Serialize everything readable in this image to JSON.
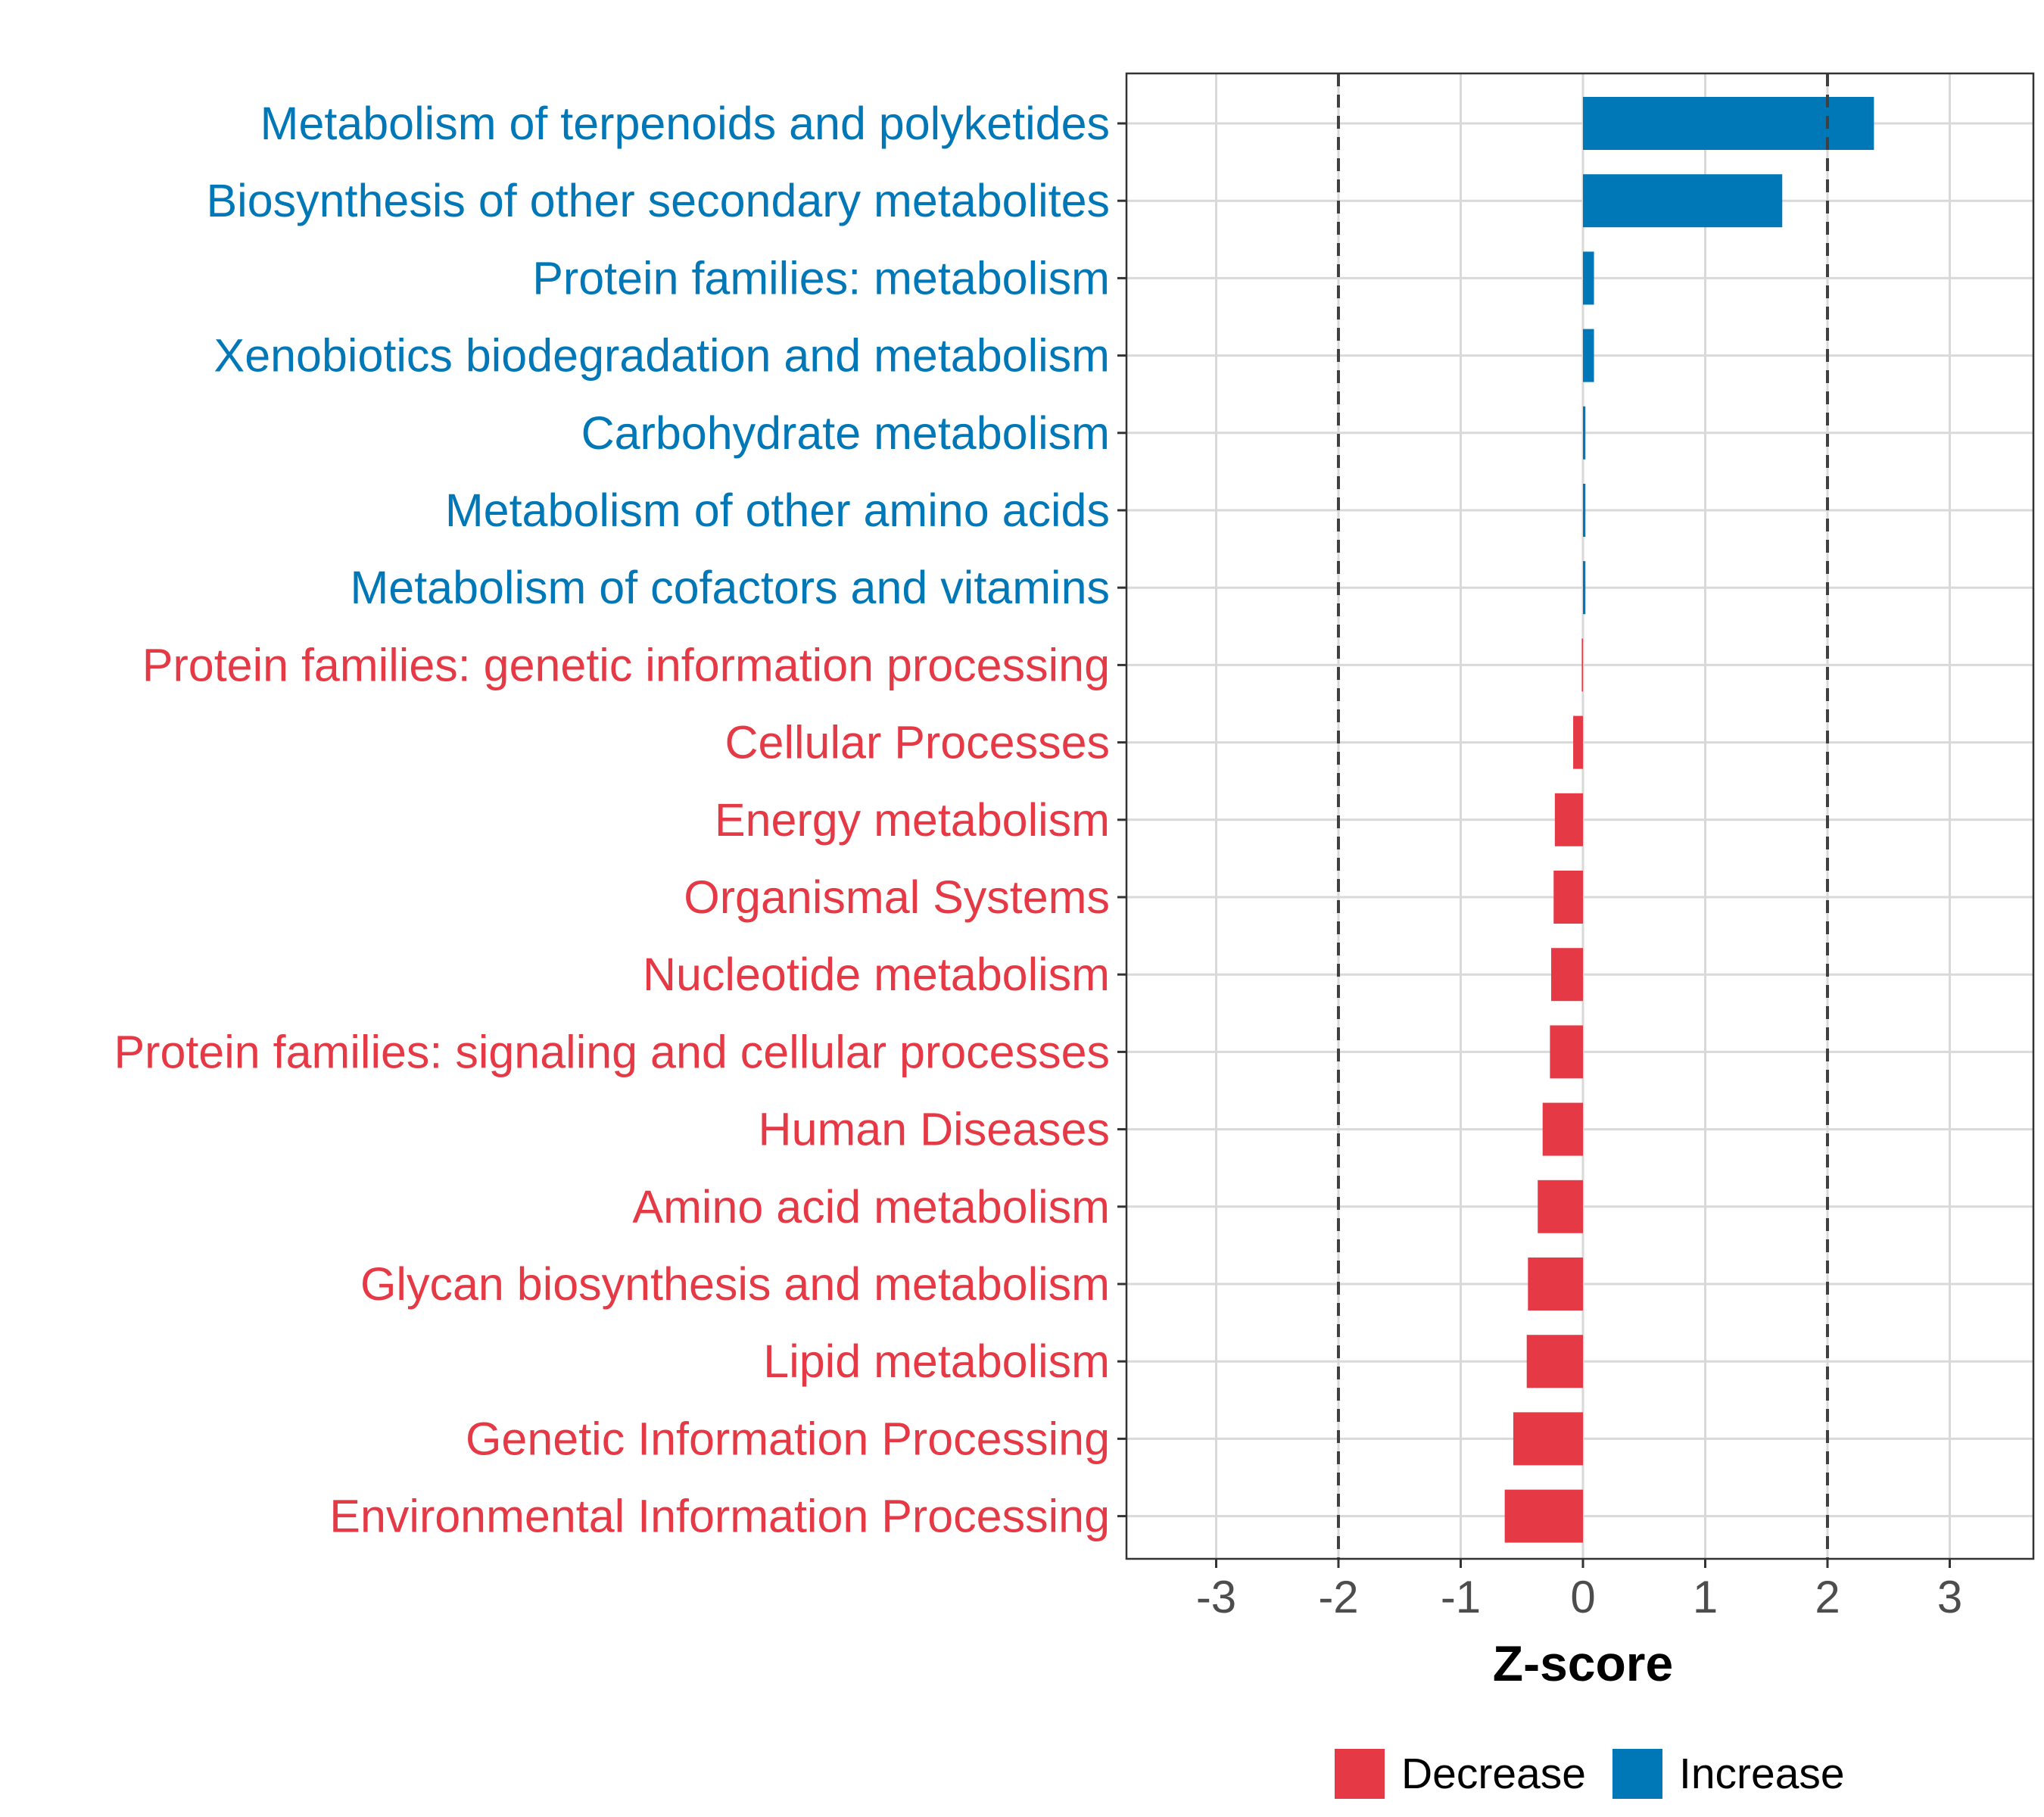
{
  "chart_data": {
    "type": "bar",
    "orientation": "horizontal",
    "xlabel": "Z-score",
    "xlim": [
      -3.7,
      3.7
    ],
    "xticks": [
      -3,
      -2,
      -1,
      0,
      1,
      2,
      3
    ],
    "reference_lines": [
      -2,
      2
    ],
    "grid": true,
    "legend_position": "bottom",
    "colors": {
      "Decrease": "#E63946",
      "Increase": "#0077B6"
    },
    "legend": [
      {
        "name": "Decrease",
        "color": "#E63946"
      },
      {
        "name": "Increase",
        "color": "#0077B6"
      }
    ],
    "categories": [
      "Metabolism of terpenoids and polyketides",
      "Biosynthesis of other secondary metabolites",
      "Protein families: metabolism",
      "Xenobiotics biodegradation and metabolism",
      "Carbohydrate metabolism",
      "Metabolism of other amino acids",
      "Metabolism of cofactors and vitamins",
      "Protein families: genetic information processing",
      "Cellular Processes",
      "Energy metabolism",
      "Organismal Systems",
      "Nucleotide metabolism",
      "Protein families: signaling and cellular processes",
      "Human Diseases",
      "Amino acid metabolism",
      "Glycan biosynthesis and metabolism",
      "Lipid metabolism",
      "Genetic Information Processing",
      "Environmental Information Processing"
    ],
    "values": [
      2.38,
      1.63,
      0.09,
      0.09,
      0.02,
      0.02,
      0.02,
      -0.01,
      -0.08,
      -0.23,
      -0.24,
      -0.26,
      -0.27,
      -0.33,
      -0.37,
      -0.45,
      -0.46,
      -0.57,
      -0.64
    ],
    "groups": [
      "Increase",
      "Increase",
      "Increase",
      "Increase",
      "Increase",
      "Increase",
      "Increase",
      "Decrease",
      "Decrease",
      "Decrease",
      "Decrease",
      "Decrease",
      "Decrease",
      "Decrease",
      "Decrease",
      "Decrease",
      "Decrease",
      "Decrease",
      "Decrease"
    ]
  }
}
